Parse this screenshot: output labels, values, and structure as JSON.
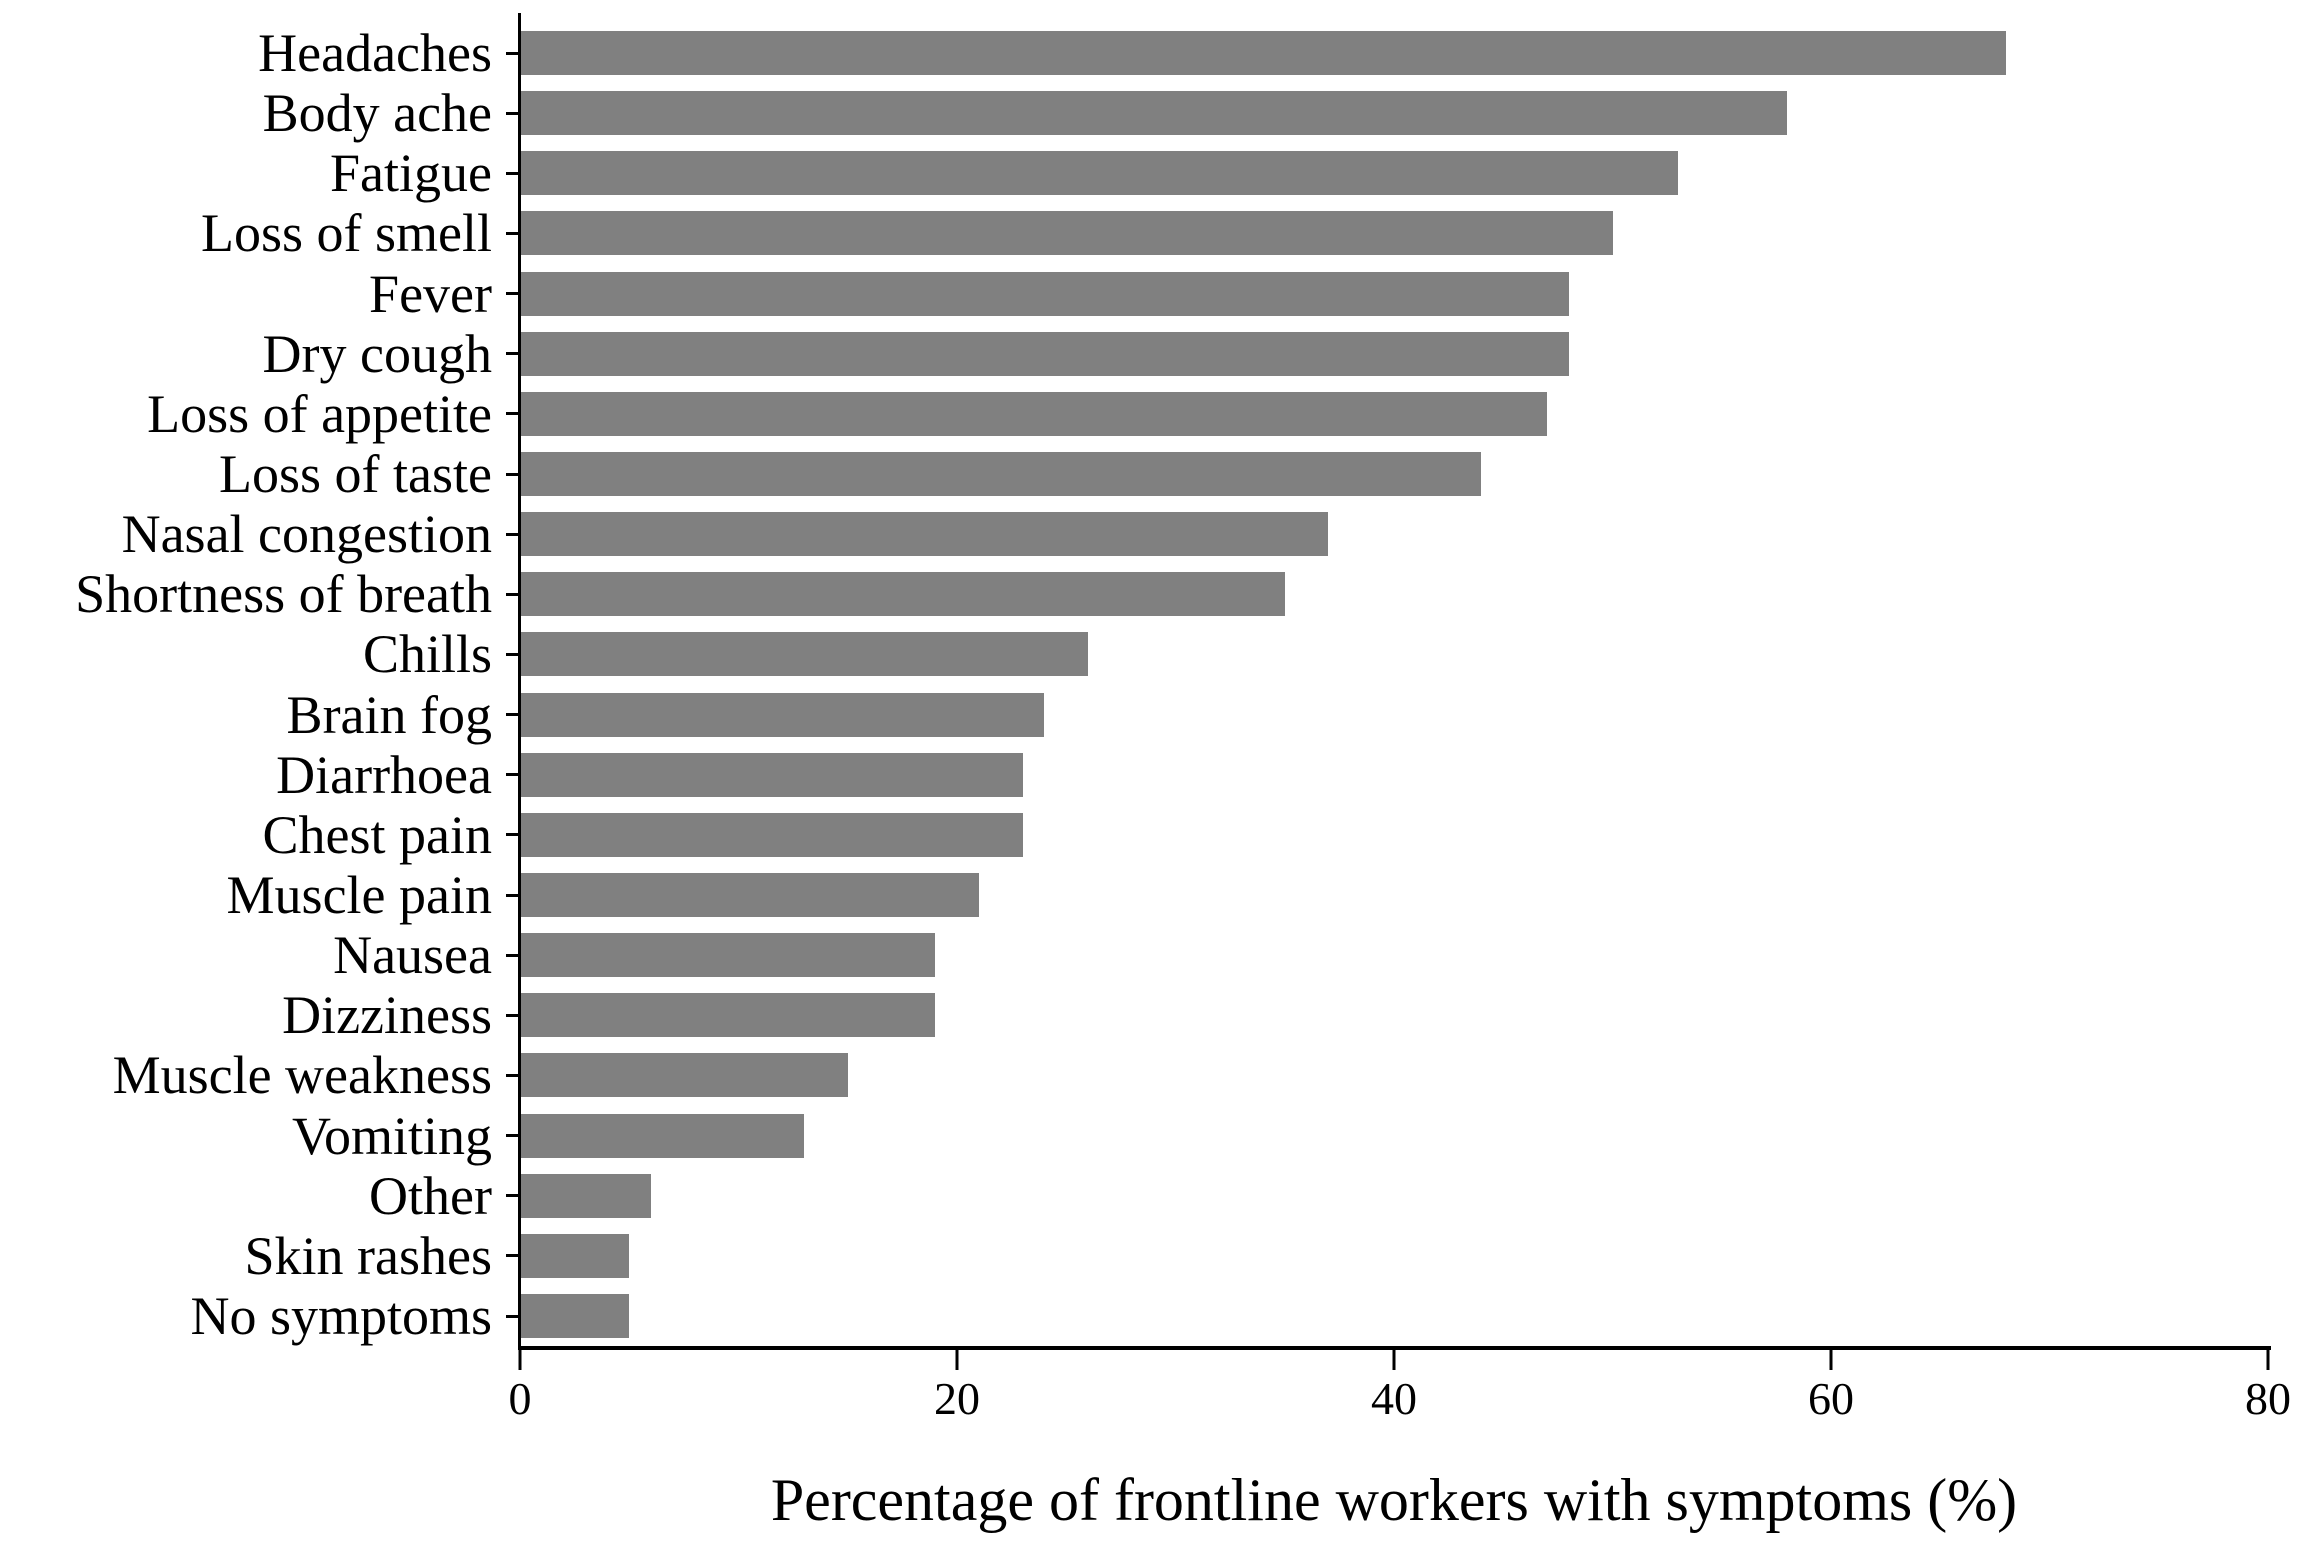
{
  "chart_data": {
    "type": "bar",
    "orientation": "horizontal",
    "title": "",
    "xlabel": "Percentage of frontline workers with symptoms (%)",
    "ylabel": "",
    "categories": [
      "Headaches",
      "Body ache",
      "Fatigue",
      "Loss of smell",
      "Fever",
      "Dry cough",
      "Loss of appetite",
      "Loss of taste",
      "Nasal congestion",
      "Shortness of breath",
      "Chills",
      "Brain fog",
      "Diarrhoea",
      "Chest pain",
      "Muscle pain",
      "Nausea",
      "Dizziness",
      "Muscle weakness",
      "Vomiting",
      "Other",
      "Skin rashes",
      "No symptoms"
    ],
    "values": [
      68,
      58,
      53,
      50,
      48,
      48,
      47,
      44,
      37,
      35,
      26,
      24,
      23,
      23,
      21,
      19,
      19,
      15,
      13,
      6,
      5,
      5
    ],
    "xlim": [
      0,
      80
    ],
    "xticks": [
      0,
      20,
      40,
      60,
      80
    ],
    "grid": false,
    "bar_color": "#808080",
    "axis_color": "#000000",
    "text_color": "#000000",
    "background_color": "#ffffff"
  }
}
